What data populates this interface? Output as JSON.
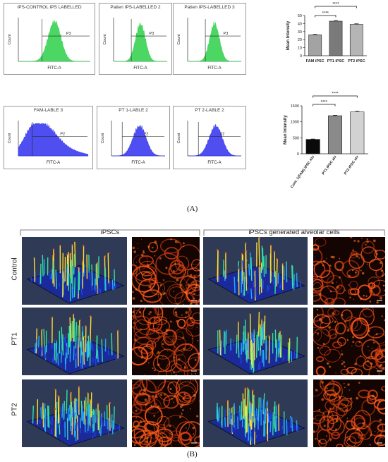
{
  "panel_a": {
    "label": "(A)",
    "flow_top": [
      {
        "title": "IPS-CONTROL IPS LABELLED",
        "gate": "P3",
        "xlabel": "FITC-A",
        "ylabel": "Count",
        "color": "#39d353"
      },
      {
        "title": "Patien IPS-LABELLED 2",
        "gate": "P3",
        "xlabel": "FITC-A",
        "ylabel": "Count",
        "color": "#39d353"
      },
      {
        "title": "Patien IPS-LABELLED 3",
        "gate": "P3",
        "xlabel": "FITC-A",
        "ylabel": "Count",
        "color": "#39d353"
      }
    ],
    "flow_bottom": [
      {
        "title": "FAM-LABLE 3",
        "gate": "P2",
        "xlabel": "FITC-A",
        "ylabel": "Count",
        "color": "#3b3bf0"
      },
      {
        "title": "PT 1-LABLE 2",
        "gate": "P2",
        "xlabel": "FITC-A",
        "ylabel": "Count",
        "color": "#3b3bf0"
      },
      {
        "title": "PT 2-LABLE 2",
        "gate": "P2",
        "xlabel": "FITC-A",
        "ylabel": "Count",
        "color": "#3b3bf0"
      }
    ]
  },
  "chart_data": [
    {
      "type": "bar",
      "ylabel": "Mean Intensity",
      "categories": [
        "FAM iPSC",
        "PT1 iPSC",
        "PT2 iPSC"
      ],
      "values": [
        26,
        43,
        39
      ],
      "errors": [
        0.8,
        0.9,
        0.7
      ],
      "ylim": [
        0,
        50
      ],
      "yticks": [
        0,
        10,
        20,
        30,
        40,
        50
      ],
      "significance": [
        "****",
        "****"
      ],
      "colors": [
        "#a3a3a3",
        "#7a7a7a",
        "#b5b5b5"
      ]
    },
    {
      "type": "bar",
      "ylabel": "Mean Intensity",
      "categories": [
        "Cont. 1(FAM) iPSC Alv",
        "PT1 iPSC alv",
        "PT2 iPSC alv"
      ],
      "values": [
        450,
        1190,
        1310
      ],
      "errors": [
        10,
        15,
        20
      ],
      "ylim": [
        0,
        1500
      ],
      "yticks": [
        0,
        500,
        1000,
        1500
      ],
      "significance": [
        "****",
        "****"
      ],
      "colors": [
        "#0a0a0a",
        "#8a8a8a",
        "#d2d2d2"
      ]
    }
  ],
  "panel_b": {
    "label": "(B)",
    "group_left": "iPSCs",
    "group_right": "iPSCs generated alveolar cells",
    "rows": [
      "Control",
      "PT1",
      "PT2"
    ]
  }
}
